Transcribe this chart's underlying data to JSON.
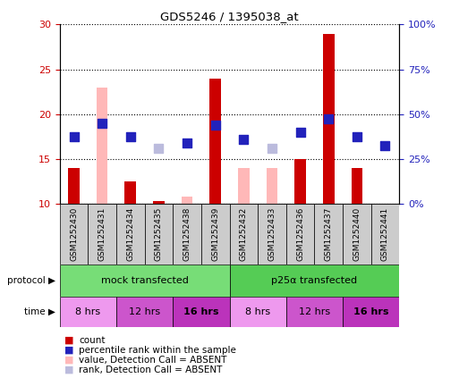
{
  "title": "GDS5246 / 1395038_at",
  "samples": [
    "GSM1252430",
    "GSM1252431",
    "GSM1252434",
    "GSM1252435",
    "GSM1252438",
    "GSM1252439",
    "GSM1252432",
    "GSM1252433",
    "GSM1252436",
    "GSM1252437",
    "GSM1252440",
    "GSM1252441"
  ],
  "count_values": [
    14,
    null,
    12.5,
    10.3,
    null,
    24,
    null,
    null,
    15,
    29,
    14,
    null
  ],
  "rank_values": [
    17.5,
    19,
    17.5,
    null,
    16.8,
    18.8,
    17.2,
    null,
    18,
    19.5,
    17.5,
    16.5
  ],
  "absent_value_values": [
    null,
    23,
    null,
    null,
    10.8,
    null,
    14,
    14,
    null,
    null,
    null,
    null
  ],
  "absent_rank_values": [
    null,
    null,
    null,
    16.2,
    null,
    null,
    null,
    16.2,
    null,
    null,
    null,
    null
  ],
  "count_color": "#cc0000",
  "rank_color": "#2222bb",
  "absent_value_color": "#ffb8b8",
  "absent_rank_color": "#bbbbdd",
  "ylim_left": [
    10,
    30
  ],
  "ylim_right": [
    0,
    100
  ],
  "yticks_left": [
    10,
    15,
    20,
    25,
    30
  ],
  "yticks_right": [
    0,
    25,
    50,
    75,
    100
  ],
  "ytick_labels_right": [
    "0%",
    "25%",
    "50%",
    "75%",
    "100%"
  ],
  "protocol_groups": [
    {
      "label": "mock transfected",
      "start": 0,
      "end": 5,
      "color": "#77dd77"
    },
    {
      "label": "p25α transfected",
      "start": 6,
      "end": 11,
      "color": "#55cc55"
    }
  ],
  "time_colors": [
    "#ee99ee",
    "#cc55cc",
    "#bb33bb",
    "#ee99ee",
    "#cc55cc",
    "#bb33bb"
  ],
  "time_groups": [
    {
      "label": "8 hrs",
      "start": 0,
      "end": 1
    },
    {
      "label": "12 hrs",
      "start": 2,
      "end": 3
    },
    {
      "label": "16 hrs",
      "start": 4,
      "end": 5
    },
    {
      "label": "8 hrs",
      "start": 6,
      "end": 7
    },
    {
      "label": "12 hrs",
      "start": 8,
      "end": 9
    },
    {
      "label": "16 hrs",
      "start": 10,
      "end": 11
    }
  ],
  "bar_width": 0.4,
  "marker_size": 50,
  "background_color": "#ffffff",
  "plot_bg_color": "#ffffff",
  "sample_box_color": "#cccccc",
  "legend_items": [
    {
      "color": "#cc0000",
      "label": "count"
    },
    {
      "color": "#2222bb",
      "label": "percentile rank within the sample"
    },
    {
      "color": "#ffb8b8",
      "label": "value, Detection Call = ABSENT"
    },
    {
      "color": "#bbbbdd",
      "label": "rank, Detection Call = ABSENT"
    }
  ]
}
